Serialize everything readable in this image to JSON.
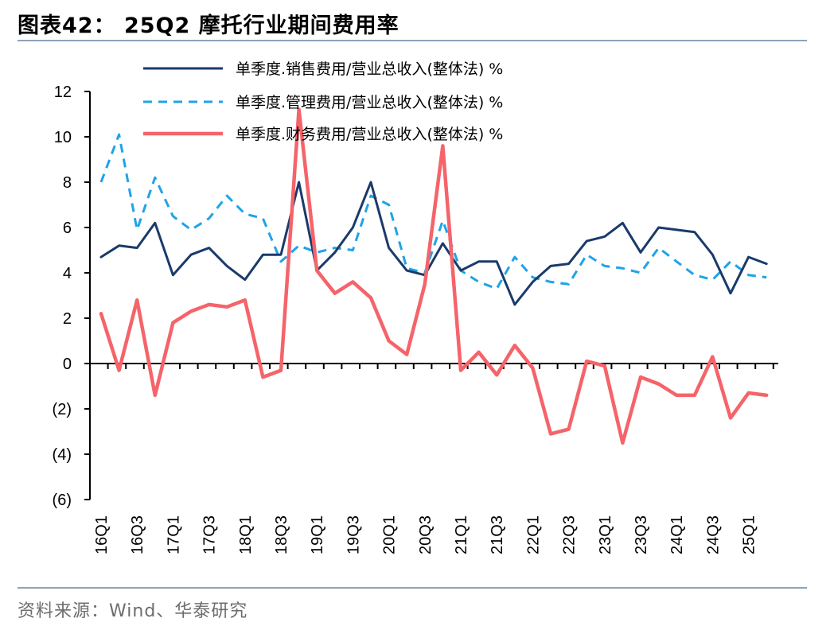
{
  "title": "图表42： 25Q2 摩托行业期间费用率",
  "source": "资料来源：Wind、华泰研究",
  "chart_data": {
    "type": "line",
    "ylim": [
      -6,
      12
    ],
    "yticks": [
      12,
      10,
      8,
      6,
      4,
      2,
      0,
      -2,
      -4,
      -6
    ],
    "ytick_labels": [
      "12",
      "10",
      "8",
      "6",
      "4",
      "2",
      "0",
      "(2)",
      "(4)",
      "(6)"
    ],
    "x": [
      "16Q1",
      "16Q2",
      "16Q3",
      "16Q4",
      "17Q1",
      "17Q2",
      "17Q3",
      "17Q4",
      "18Q1",
      "18Q2",
      "18Q3",
      "18Q4",
      "19Q1",
      "19Q2",
      "19Q3",
      "19Q4",
      "20Q1",
      "20Q2",
      "20Q3",
      "20Q4",
      "21Q1",
      "21Q2",
      "21Q3",
      "21Q4",
      "22Q1",
      "22Q2",
      "22Q3",
      "22Q4",
      "23Q1",
      "23Q2",
      "23Q3",
      "23Q4",
      "24Q1",
      "24Q2",
      "24Q3",
      "24Q4",
      "25Q1",
      "25Q2"
    ],
    "xtick_labels": [
      "16Q1",
      "16Q3",
      "17Q1",
      "17Q3",
      "18Q1",
      "18Q3",
      "19Q1",
      "19Q3",
      "20Q1",
      "20Q3",
      "21Q1",
      "21Q3",
      "22Q1",
      "22Q3",
      "23Q1",
      "23Q3",
      "24Q1",
      "24Q3",
      "25Q1"
    ],
    "legend_position": "top",
    "series": [
      {
        "name": "单季度.销售费用/营业总收入(整体法) %",
        "color": "#1a3a6b",
        "style": "solid",
        "values": [
          4.7,
          5.2,
          5.1,
          6.2,
          3.9,
          4.8,
          5.1,
          4.3,
          3.7,
          4.8,
          4.8,
          8.0,
          4.1,
          4.9,
          6.0,
          8.0,
          5.1,
          4.1,
          3.9,
          5.3,
          4.1,
          4.5,
          4.5,
          2.6,
          3.6,
          4.3,
          4.4,
          5.4,
          5.6,
          6.2,
          4.9,
          6.0,
          5.9,
          5.8,
          4.8,
          3.1,
          4.7,
          4.4
        ]
      },
      {
        "name": "单季度.管理费用/营业总收入(整体法) %",
        "color": "#1fa3e8",
        "style": "dashed",
        "values": [
          8.0,
          10.1,
          5.9,
          8.2,
          6.5,
          5.9,
          6.4,
          7.4,
          6.6,
          6.4,
          4.5,
          5.2,
          4.9,
          5.1,
          5.0,
          7.4,
          7.0,
          4.2,
          4.0,
          6.3,
          4.1,
          3.6,
          3.3,
          4.7,
          3.8,
          3.6,
          3.5,
          4.8,
          4.3,
          4.2,
          4.0,
          5.1,
          4.5,
          3.9,
          3.7,
          4.5,
          3.9,
          3.8
        ]
      },
      {
        "name": "单季度.财务费用/营业总收入(整体法) %",
        "color": "#f4646a",
        "style": "solid",
        "values": [
          2.2,
          -0.3,
          2.8,
          -1.4,
          1.8,
          2.3,
          2.6,
          2.5,
          2.8,
          -0.6,
          -0.3,
          11.2,
          4.1,
          3.1,
          3.6,
          2.9,
          1.0,
          0.4,
          3.5,
          9.6,
          -0.3,
          0.5,
          -0.5,
          0.8,
          -0.2,
          -3.1,
          -2.9,
          0.1,
          -0.1,
          -3.5,
          -0.6,
          -0.9,
          -1.4,
          -1.4,
          0.3,
          -2.4,
          -1.3,
          -1.4
        ]
      }
    ]
  }
}
